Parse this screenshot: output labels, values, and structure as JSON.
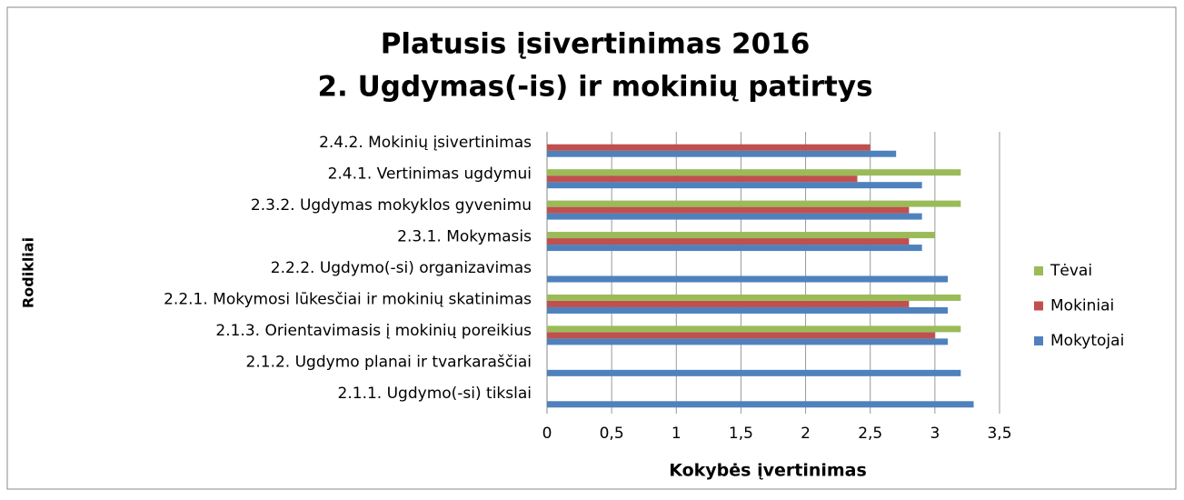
{
  "chart_data": {
    "type": "hbar",
    "title": [
      "Platusis įsivertinimas 2016",
      "2. Ugdymas(-is) ir mokinių patirtys"
    ],
    "xlabel": "Kokybės įvertinimas",
    "ylabel": "Rodikliai",
    "categories": [
      "2.1.1. Ugdymo(-si) tikslai",
      "2.1.2. Ugdymo planai ir tvarkaraščiai",
      "2.1.3. Orientavimasis į mokinių poreikius",
      "2.2.1. Mokymosi lūkesčiai ir mokinių skatinimas",
      "2.2.2. Ugdymo(-si) organizavimas",
      "2.3.1. Mokymasis",
      "2.3.2. Ugdymas mokyklos gyvenimu",
      "2.4.1. Vertinimas ugdymui",
      "2.4.2. Mokinių įsivertinimas"
    ],
    "series": [
      {
        "name": "Mokytojai",
        "color": "#4f81bd",
        "values": [
          3.3,
          3.2,
          3.1,
          3.1,
          3.1,
          2.9,
          2.9,
          2.9,
          2.7
        ]
      },
      {
        "name": "Mokiniai",
        "color": "#c0504d",
        "values": [
          null,
          null,
          3.0,
          2.8,
          null,
          2.8,
          2.8,
          2.4,
          2.5
        ]
      },
      {
        "name": "Tėvai",
        "color": "#9bbb59",
        "values": [
          null,
          null,
          3.2,
          3.2,
          null,
          3.0,
          3.2,
          3.2,
          null
        ]
      }
    ],
    "xlim": [
      0,
      3.5
    ],
    "xticks": [
      0,
      {
        "value": 0.5,
        "label": "0,5"
      },
      1,
      {
        "value": 1.5,
        "label": "1,5"
      },
      2,
      {
        "value": 2.5,
        "label": "2,5"
      },
      3,
      {
        "value": 3.5,
        "label": "3,5"
      }
    ],
    "grid": true,
    "legend": "right"
  }
}
